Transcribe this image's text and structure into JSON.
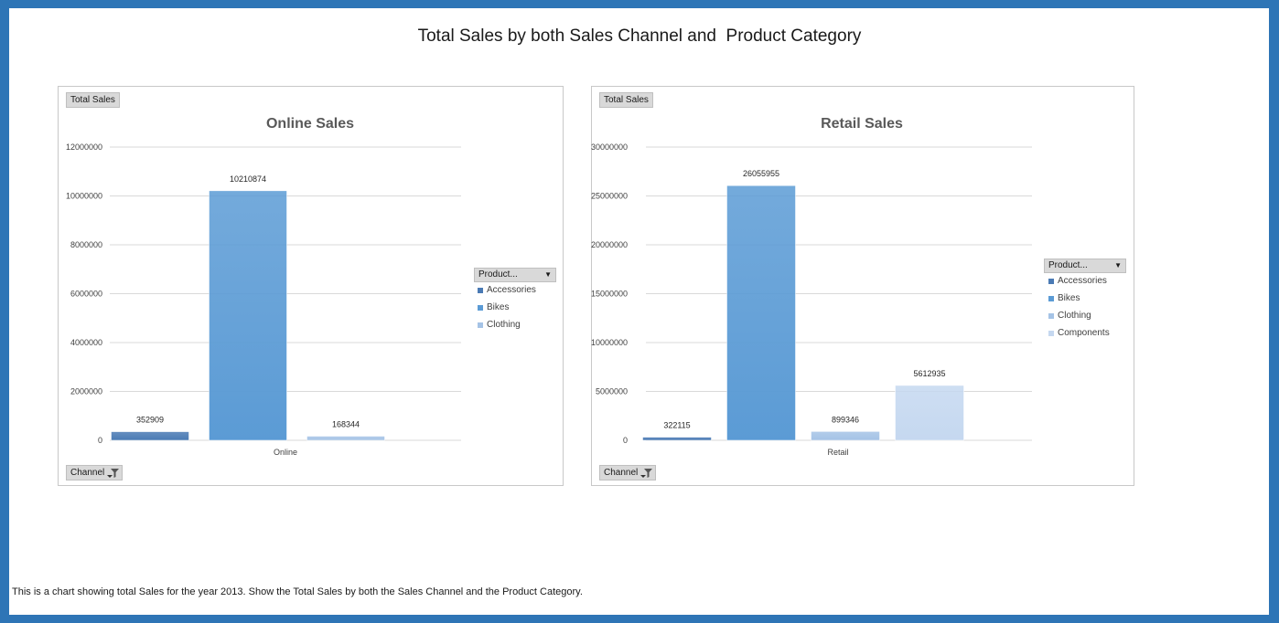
{
  "page": {
    "title": "Total Sales by both Sales Channel and  Product Category",
    "footnote": "This is a chart showing total Sales for the year 2013. Show the Total Sales by both the Sales Channel and the Product Category."
  },
  "colors": {
    "border": "#2e75b6",
    "accessories": "#4a7ab4",
    "bikes": "#5b9bd5",
    "clothing": "#a5c3e6",
    "components": "#c5d8f0"
  },
  "left_panel": {
    "values_button": "Total Sales",
    "axis_button": "Channel",
    "legend_header": "Product...",
    "legend_items": [
      "Accessories",
      "Bikes",
      "Clothing"
    ]
  },
  "right_panel": {
    "values_button": "Total Sales",
    "axis_button": "Channel",
    "legend_header": "Product...",
    "legend_items": [
      "Accessories",
      "Bikes",
      "Clothing",
      "Components"
    ]
  },
  "chart_data": [
    {
      "type": "bar",
      "title": "Online Sales",
      "categories": [
        "Online"
      ],
      "series": [
        {
          "name": "Accessories",
          "values": [
            352909
          ]
        },
        {
          "name": "Bikes",
          "values": [
            10210874
          ]
        },
        {
          "name": "Clothing",
          "values": [
            168344
          ]
        }
      ],
      "ylim": [
        0,
        12000000
      ],
      "yticks": [
        "0",
        "2000000",
        "4000000",
        "6000000",
        "8000000",
        "10000000",
        "12000000"
      ],
      "ytick_values": [
        0,
        2000000,
        4000000,
        6000000,
        8000000,
        10000000,
        12000000
      ],
      "grid": true,
      "legend": "right"
    },
    {
      "type": "bar",
      "title": "Retail Sales",
      "categories": [
        "Retail"
      ],
      "series": [
        {
          "name": "Accessories",
          "values": [
            322115
          ]
        },
        {
          "name": "Bikes",
          "values": [
            26055955
          ]
        },
        {
          "name": "Clothing",
          "values": [
            899346
          ]
        },
        {
          "name": "Components",
          "values": [
            5612935
          ]
        }
      ],
      "ylim": [
        0,
        30000000
      ],
      "yticks": [
        "0",
        "5000000",
        "10000000",
        "15000000",
        "20000000",
        "25000000",
        "30000000"
      ],
      "ytick_values": [
        0,
        5000000,
        10000000,
        15000000,
        20000000,
        25000000,
        30000000
      ],
      "grid": true,
      "legend": "right"
    }
  ]
}
